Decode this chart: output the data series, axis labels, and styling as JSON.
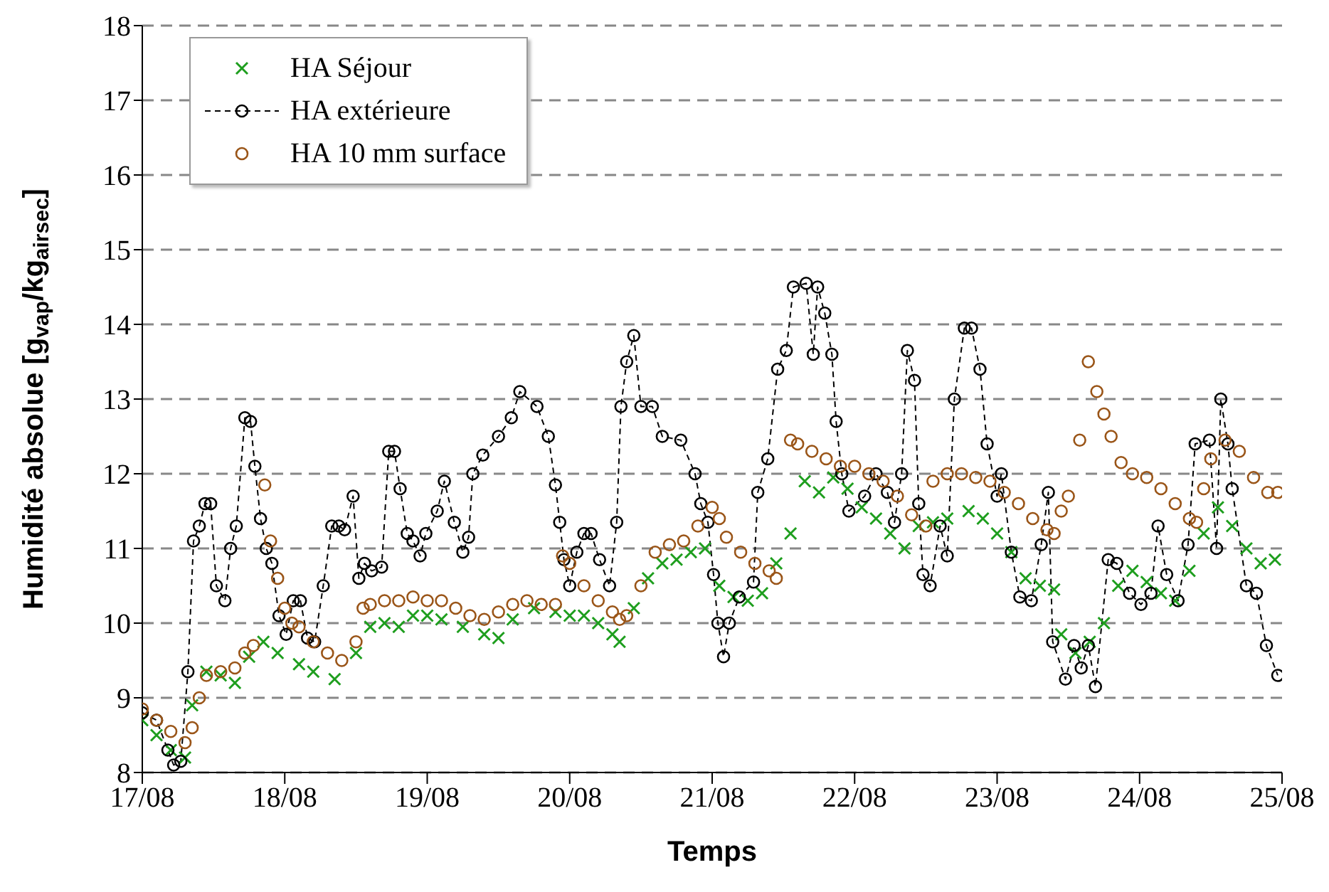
{
  "chart_data": {
    "type": "scatter",
    "xlabel": "Temps",
    "ylabel": "Humidité absolue [g$_{vap}$/kg$_{airsec}$]",
    "xlim": [
      "--08-17",
      "--08-25"
    ],
    "xticks": [
      {
        "value": "--08-17",
        "label": "17/08"
      },
      {
        "value": "--08-18",
        "label": "18/08"
      },
      {
        "value": "--08-19",
        "label": "19/08"
      },
      {
        "value": "--08-20",
        "label": "20/08"
      },
      {
        "value": "--08-21",
        "label": "21/08"
      },
      {
        "value": "--08-22",
        "label": "22/08"
      },
      {
        "value": "--08-23",
        "label": "23/08"
      },
      {
        "value": "--08-24",
        "label": "24/08"
      },
      {
        "value": "--08-25",
        "label": "25/08"
      }
    ],
    "ylim": [
      8,
      18
    ],
    "yticks": [
      8,
      9,
      10,
      11,
      12,
      13,
      14,
      15,
      16,
      17,
      18
    ],
    "grid": "y",
    "legend": "top left",
    "series": [
      {
        "name": "HA Séjour",
        "marker": "cross",
        "color": "#1e9e1e",
        "x": [
          "--08-17T00:00",
          "--08-17T02:24",
          "--08-17T04:48",
          "--08-17T07:12",
          "--08-17T08:24",
          "--08-17T10:48",
          "--08-17T13:12",
          "--08-17T15:36",
          "--08-17T18:00",
          "--08-17T20:24",
          "--08-17T22:48",
          "--08-18T02:24",
          "--08-18T04:48",
          "--08-18T08:24",
          "--08-18T12:00",
          "--08-18T14:24",
          "--08-18T16:48",
          "--08-18T19:12",
          "--08-18T21:36",
          "--08-19T00:00",
          "--08-19T02:24",
          "--08-19T06:00",
          "--08-19T09:36",
          "--08-19T12:00",
          "--08-19T14:24",
          "--08-19T18:00",
          "--08-19T21:36",
          "--08-20T00:00",
          "--08-20T02:24",
          "--08-20T04:48",
          "--08-20T07:12",
          "--08-20T08:24",
          "--08-20T10:48",
          "--08-20T13:12",
          "--08-20T15:36",
          "--08-20T18:00",
          "--08-20T20:24",
          "--08-20T22:48",
          "--08-21T01:12",
          "--08-21T03:36",
          "--08-21T06:00",
          "--08-21T08:24",
          "--08-21T10:48",
          "--08-21T13:12",
          "--08-21T15:36",
          "--08-21T18:00",
          "--08-21T20:24",
          "--08-21T22:48",
          "--08-22T01:12",
          "--08-22T03:36",
          "--08-22T06:00",
          "--08-22T08:24",
          "--08-22T10:48",
          "--08-22T13:12",
          "--08-22T15:36",
          "--08-22T19:12",
          "--08-22T21:36",
          "--08-23T00:00",
          "--08-23T02:24",
          "--08-23T04:48",
          "--08-23T07:12",
          "--08-23T09:36",
          "--08-23T10:48",
          "--08-23T13:12",
          "--08-23T15:36",
          "--08-23T18:00",
          "--08-23T20:24",
          "--08-23T22:48",
          "--08-24T01:12",
          "--08-24T03:36",
          "--08-24T06:00",
          "--08-24T08:24",
          "--08-24T10:48",
          "--08-24T13:12",
          "--08-24T15:36",
          "--08-24T18:00",
          "--08-24T20:24",
          "--08-24T22:48"
        ],
        "values": [
          8.7,
          8.5,
          8.3,
          8.2,
          8.9,
          9.35,
          9.3,
          9.2,
          9.55,
          9.75,
          9.6,
          9.45,
          9.35,
          9.25,
          9.6,
          9.95,
          10.0,
          9.95,
          10.1,
          10.1,
          10.05,
          9.95,
          9.85,
          9.8,
          10.05,
          10.2,
          10.15,
          10.1,
          10.1,
          10.0,
          9.85,
          9.75,
          10.2,
          10.6,
          10.8,
          10.85,
          10.95,
          11.0,
          10.5,
          10.35,
          10.3,
          10.4,
          10.8,
          11.2,
          11.9,
          11.75,
          11.95,
          11.8,
          11.55,
          11.4,
          11.2,
          11.0,
          11.3,
          11.35,
          11.4,
          11.5,
          11.4,
          11.2,
          10.95,
          10.6,
          10.5,
          10.45,
          9.85,
          9.6,
          9.75,
          10.0,
          10.5,
          10.7,
          10.55,
          10.4,
          10.3,
          10.7,
          11.2,
          11.55,
          11.3,
          11.0,
          10.8,
          10.85
        ]
      },
      {
        "name": "HA extérieure",
        "type": "line",
        "marker": "circle",
        "line_style": "dashed",
        "color": "#000000",
        "x": [
          "--08-17T00:00",
          "--08-17T02:24",
          "--08-17T04:19",
          "--08-17T05:17",
          "--08-17T06:29",
          "--08-17T07:41",
          "--08-17T08:38",
          "--08-17T09:36",
          "--08-17T10:34",
          "--08-17T11:31",
          "--08-17T12:29",
          "--08-17T13:55",
          "--08-17T14:53",
          "--08-17T15:50",
          "--08-17T17:17",
          "--08-17T18:14",
          "--08-17T18:58",
          "--08-17T19:55",
          "--08-17T20:53",
          "--08-17T21:50",
          "--08-17T23:02",
          "--08-18T00:14",
          "--08-18T01:26",
          "--08-18T02:38",
          "--08-18T03:50",
          "--08-18T05:02",
          "--08-18T06:29",
          "--08-18T07:55",
          "--08-18T09:07",
          "--08-18T10:05",
          "--08-18T11:31",
          "--08-18T12:29",
          "--08-18T13:26",
          "--08-18T14:38",
          "--08-18T16:19",
          "--08-18T17:31",
          "--08-18T18:29",
          "--08-18T19:26",
          "--08-18T20:38",
          "--08-18T21:36",
          "--08-18T22:48",
          "--08-18T23:46",
          "--08-19T01:41",
          "--08-19T02:53",
          "--08-19T04:34",
          "--08-19T06:00",
          "--08-19T06:58",
          "--08-19T07:41",
          "--08-19T09:22",
          "--08-19T12:00",
          "--08-19T14:10",
          "--08-19T15:36",
          "--08-19T18:29",
          "--08-19T20:24",
          "--08-19T21:36",
          "--08-19T22:19",
          "--08-19T23:02",
          "--08-20T00:00",
          "--08-20T01:12",
          "--08-20T02:24",
          "--08-20T03:36",
          "--08-20T05:02",
          "--08-20T06:43",
          "--08-20T07:55",
          "--08-20T08:38",
          "--08-20T09:36",
          "--08-20T10:48",
          "--08-20T12:00",
          "--08-20T13:55",
          "--08-20T15:36",
          "--08-20T18:43",
          "--08-20T21:07",
          "--08-20T22:05",
          "--08-20T23:17",
          "--08-21T00:14",
          "--08-21T00:58",
          "--08-21T01:55",
          "--08-21T02:53",
          "--08-21T04:34",
          "--08-21T06:58",
          "--08-21T07:41",
          "--08-21T09:22",
          "--08-21T11:02",
          "--08-21T12:29",
          "--08-21T13:41",
          "--08-21T15:50",
          "--08-21T17:02",
          "--08-21T17:46",
          "--08-21T18:58",
          "--08-21T20:10",
          "--08-21T20:53",
          "--08-21T21:50",
          "--08-21T23:02",
          "--08-22T01:41",
          "--08-22T03:36",
          "--08-22T05:31",
          "--08-22T06:43",
          "--08-22T07:55",
          "--08-22T08:53",
          "--08-22T10:05",
          "--08-22T10:48",
          "--08-22T11:31",
          "--08-22T12:43",
          "--08-22T14:24",
          "--08-22T15:36",
          "--08-22T16:48",
          "--08-22T18:29",
          "--08-22T19:41",
          "--08-22T21:07",
          "--08-22T22:19",
          "--08-23T00:00",
          "--08-23T00:43",
          "--08-23T02:24",
          "--08-23T03:50",
          "--08-23T05:46",
          "--08-23T07:26",
          "--08-23T08:38",
          "--08-23T09:22",
          "--08-23T11:31",
          "--08-23T12:58",
          "--08-23T14:10",
          "--08-23T15:22",
          "--08-23T16:34",
          "--08-23T18:43",
          "--08-23T20:10",
          "--08-23T22:19",
          "--08-24T00:14",
          "--08-24T01:55",
          "--08-24T03:07",
          "--08-24T04:34",
          "--08-24T06:29",
          "--08-24T08:10",
          "--08-24T09:22",
          "--08-24T11:46",
          "--08-24T12:58",
          "--08-24T13:41",
          "--08-24T14:53",
          "--08-24T15:36",
          "--08-24T18:00",
          "--08-24T19:41",
          "--08-24T21:22",
          "--08-24T23:17"
        ],
        "values": [
          8.8,
          8.7,
          8.3,
          8.1,
          8.15,
          9.35,
          11.1,
          11.3,
          11.6,
          11.6,
          10.5,
          10.3,
          11.0,
          11.3,
          12.75,
          12.7,
          12.1,
          11.4,
          11.0,
          10.8,
          10.1,
          9.85,
          10.3,
          10.3,
          9.8,
          9.75,
          10.5,
          11.3,
          11.3,
          11.25,
          11.7,
          10.6,
          10.8,
          10.7,
          10.75,
          12.3,
          12.3,
          11.8,
          11.2,
          11.1,
          10.9,
          11.2,
          11.5,
          11.9,
          11.35,
          10.95,
          11.15,
          12.0,
          12.25,
          12.5,
          12.75,
          13.1,
          12.9,
          12.5,
          11.85,
          11.35,
          10.85,
          10.5,
          10.95,
          11.2,
          11.2,
          10.85,
          10.5,
          11.35,
          12.9,
          13.5,
          13.85,
          12.9,
          12.9,
          12.5,
          12.45,
          12.0,
          11.6,
          11.35,
          10.65,
          10.0,
          9.55,
          10.0,
          10.35,
          10.55,
          11.75,
          12.2,
          13.4,
          13.65,
          14.5,
          14.55,
          13.6,
          14.5,
          14.15,
          13.6,
          12.7,
          12.0,
          11.5,
          11.7,
          12.0,
          11.75,
          11.35,
          12.0,
          13.65,
          13.25,
          11.6,
          10.65,
          10.5,
          11.3,
          10.9,
          13.0,
          13.95,
          13.95,
          13.4,
          12.4,
          11.7,
          12.0,
          10.95,
          10.35,
          10.3,
          11.05,
          11.75,
          9.75,
          9.25,
          9.7,
          9.4,
          9.7,
          9.15,
          10.85,
          10.8,
          10.4,
          10.25,
          10.4,
          11.3,
          10.65,
          10.3,
          11.05,
          12.4,
          12.45,
          11.0,
          13.0,
          12.4,
          11.8,
          10.5,
          10.4,
          9.7,
          9.3
        ]
      },
      {
        "name": "HA 10 mm surface",
        "marker": "circle",
        "color": "#9a5518",
        "x": [
          "--08-17T00:00",
          "--08-17T02:24",
          "--08-17T04:48",
          "--08-17T07:12",
          "--08-17T08:24",
          "--08-17T09:36",
          "--08-17T10:48",
          "--08-17T13:12",
          "--08-17T15:36",
          "--08-17T17:17",
          "--08-17T18:43",
          "--08-17T20:38",
          "--08-17T21:36",
          "--08-17T22:48",
          "--08-18T00:00",
          "--08-18T01:12",
          "--08-18T02:24",
          "--08-18T04:48",
          "--08-18T07:12",
          "--08-18T09:36",
          "--08-18T12:00",
          "--08-18T13:12",
          "--08-18T14:24",
          "--08-18T16:48",
          "--08-18T19:12",
          "--08-18T21:36",
          "--08-19T00:00",
          "--08-19T02:24",
          "--08-19T04:48",
          "--08-19T07:12",
          "--08-19T09:36",
          "--08-19T12:00",
          "--08-19T14:24",
          "--08-19T16:48",
          "--08-19T19:12",
          "--08-19T21:36",
          "--08-19T22:48",
          "--08-20T00:00",
          "--08-20T02:24",
          "--08-20T04:48",
          "--08-20T07:12",
          "--08-20T08:24",
          "--08-20T09:36",
          "--08-20T12:00",
          "--08-20T14:24",
          "--08-20T16:48",
          "--08-20T19:12",
          "--08-20T21:36",
          "--08-21T00:00",
          "--08-21T01:12",
          "--08-21T02:24",
          "--08-21T04:48",
          "--08-21T07:12",
          "--08-21T09:36",
          "--08-21T10:48",
          "--08-21T13:12",
          "--08-21T14:24",
          "--08-21T16:48",
          "--08-21T19:12",
          "--08-21T21:36",
          "--08-22T00:00",
          "--08-22T02:24",
          "--08-22T04:48",
          "--08-22T07:12",
          "--08-22T09:36",
          "--08-22T12:00",
          "--08-22T13:12",
          "--08-22T15:36",
          "--08-22T18:00",
          "--08-22T20:24",
          "--08-22T22:48",
          "--08-23T01:12",
          "--08-23T03:36",
          "--08-23T06:00",
          "--08-23T08:24",
          "--08-23T09:36",
          "--08-23T10:48",
          "--08-23T12:00",
          "--08-23T13:55",
          "--08-23T15:22",
          "--08-23T16:48",
          "--08-23T18:00",
          "--08-23T19:12",
          "--08-23T20:53",
          "--08-23T22:48",
          "--08-24T01:12",
          "--08-24T03:36",
          "--08-24T06:00",
          "--08-24T08:24",
          "--08-24T09:36",
          "--08-24T10:48",
          "--08-24T12:00",
          "--08-24T14:24",
          "--08-24T16:48",
          "--08-24T19:12",
          "--08-24T21:36",
          "--08-24T23:17"
        ],
        "values": [
          8.85,
          8.7,
          8.55,
          8.4,
          8.6,
          9.0,
          9.3,
          9.35,
          9.4,
          9.6,
          9.7,
          11.85,
          11.1,
          10.6,
          10.2,
          10.0,
          9.95,
          9.75,
          9.6,
          9.5,
          9.75,
          10.2,
          10.25,
          10.3,
          10.3,
          10.35,
          10.3,
          10.3,
          10.2,
          10.1,
          10.05,
          10.15,
          10.25,
          10.3,
          10.25,
          10.25,
          10.9,
          10.8,
          10.5,
          10.3,
          10.15,
          10.05,
          10.1,
          10.5,
          10.95,
          11.05,
          11.1,
          11.3,
          11.55,
          11.4,
          11.15,
          10.95,
          10.8,
          10.7,
          10.6,
          12.45,
          12.4,
          12.3,
          12.2,
          12.1,
          12.1,
          12.0,
          11.9,
          11.7,
          11.45,
          11.3,
          11.9,
          12.0,
          12.0,
          11.95,
          11.9,
          11.75,
          11.6,
          11.4,
          11.25,
          11.2,
          11.5,
          11.7,
          12.45,
          13.5,
          13.1,
          12.8,
          12.5,
          12.15,
          12.0,
          11.95,
          11.8,
          11.6,
          11.4,
          11.35,
          11.8,
          12.2,
          12.45,
          12.3,
          11.95,
          11.75,
          11.75
        ]
      }
    ]
  }
}
